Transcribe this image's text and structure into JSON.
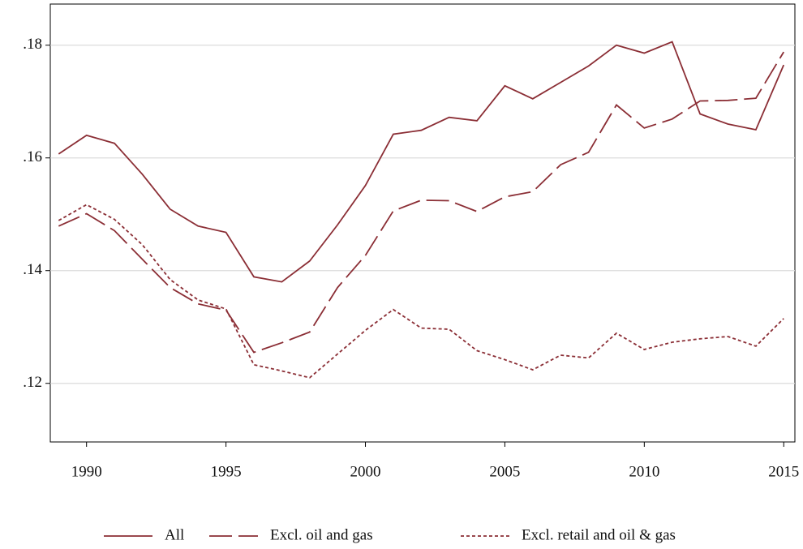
{
  "chart_data": {
    "type": "line",
    "x": [
      1989,
      1990,
      1991,
      1992,
      1993,
      1994,
      1995,
      1996,
      1997,
      1998,
      1999,
      2000,
      2001,
      2002,
      2003,
      2004,
      2005,
      2006,
      2007,
      2008,
      2009,
      2010,
      2011,
      2012,
      2013,
      2014,
      2015
    ],
    "series": [
      {
        "name": "All",
        "color": "#8b2e35",
        "line_style": "solid",
        "values": [
          0.1607,
          0.164,
          0.1626,
          0.1571,
          0.1509,
          0.1479,
          0.1468,
          0.1389,
          0.138,
          0.1417,
          0.1481,
          0.1551,
          0.1642,
          0.1649,
          0.1672,
          0.1666,
          0.1728,
          0.1705,
          0.1734,
          0.1763,
          0.18,
          0.1786,
          0.1806,
          0.1678,
          0.166,
          0.165,
          0.1765
        ]
      },
      {
        "name": "Excl. oil and gas",
        "color": "#8b2e35",
        "line_style": "longdash",
        "values": [
          0.1479,
          0.1501,
          0.1471,
          0.142,
          0.137,
          0.1341,
          0.133,
          0.1255,
          0.1272,
          0.1291,
          0.137,
          0.1427,
          0.1506,
          0.1525,
          0.1524,
          0.1505,
          0.1531,
          0.154,
          0.1588,
          0.161,
          0.1694,
          0.1653,
          0.1669,
          0.1701,
          0.1702,
          0.1706,
          0.1788
        ]
      },
      {
        "name": "Excl. retail and oil & gas",
        "color": "#8b2e35",
        "line_style": "dot",
        "values": [
          0.1489,
          0.1517,
          0.1491,
          0.1446,
          0.1384,
          0.1348,
          0.1332,
          0.1233,
          0.1222,
          0.121,
          0.1252,
          0.1294,
          0.1331,
          0.1298,
          0.1296,
          0.1258,
          0.1242,
          0.1224,
          0.125,
          0.1245,
          0.1289,
          0.126,
          0.1273,
          0.1279,
          0.1283,
          0.1266,
          0.1315
        ]
      }
    ],
    "xlim": [
      1988.7,
      2015.4
    ],
    "xticks": [
      1990,
      1995,
      2000,
      2005,
      2010,
      2015
    ],
    "ylim": [
      0.1096,
      0.1873
    ],
    "yticks": [
      {
        "value": 0.12,
        "label": ".12"
      },
      {
        "value": 0.14,
        "label": ".14"
      },
      {
        "value": 0.16,
        "label": ".16"
      },
      {
        "value": 0.18,
        "label": ".18"
      }
    ],
    "grid": true
  }
}
